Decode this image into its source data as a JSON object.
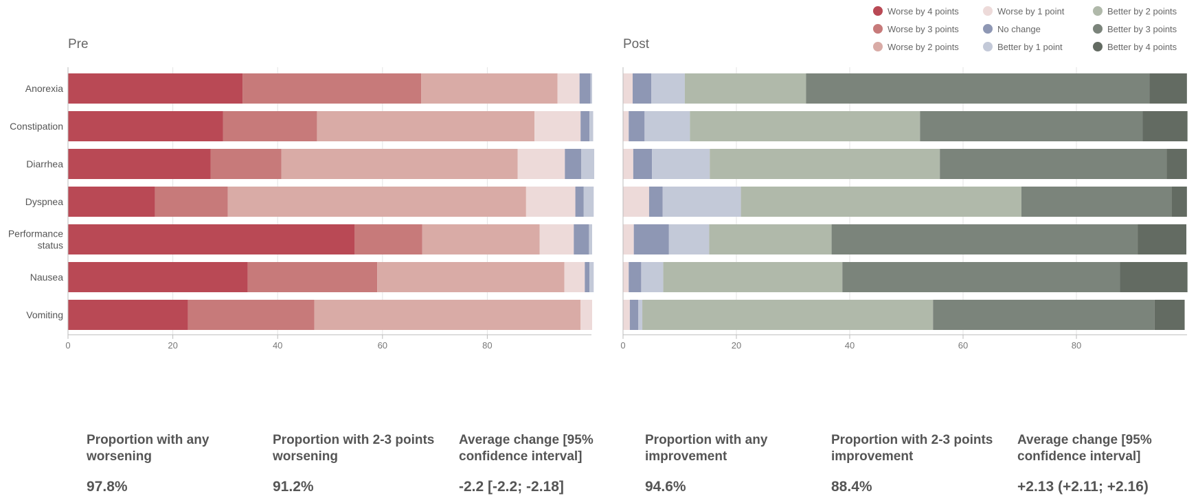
{
  "chart_data": [
    {
      "type": "bar",
      "orientation": "horizontal",
      "stacked": true,
      "title": "Pre",
      "categories": [
        "Anorexia",
        "Constipation",
        "Diarrhea",
        "Dyspnea",
        "Performance status",
        "Nausea",
        "Vomiting"
      ],
      "xlim": [
        0,
        100
      ],
      "xticks": [
        0,
        20,
        40,
        60,
        80
      ],
      "grid": true,
      "series": [
        {
          "name": "Worse by 4 points",
          "values": [
            33.3,
            29.6,
            27.2,
            16.6,
            54.7,
            34.3,
            22.9
          ]
        },
        {
          "name": "Worse by 3 points",
          "values": [
            34.1,
            17.9,
            13.5,
            13.9,
            12.9,
            24.7,
            24.1
          ]
        },
        {
          "name": "Worse by 2 points",
          "values": [
            26.0,
            41.5,
            45.1,
            56.9,
            22.4,
            35.7,
            50.8
          ]
        },
        {
          "name": "Worse by 1 point",
          "values": [
            4.2,
            8.8,
            9.0,
            9.4,
            6.5,
            3.9,
            2.2
          ]
        },
        {
          "name": "No change",
          "values": [
            2.1,
            1.7,
            3.1,
            1.6,
            2.9,
            0.9,
            0.0
          ]
        },
        {
          "name": "Better by 1 point",
          "values": [
            0.3,
            0.7,
            2.5,
            1.9,
            0.6,
            0.8,
            0.0
          ]
        }
      ]
    },
    {
      "type": "bar",
      "orientation": "horizontal",
      "stacked": true,
      "title": "Post",
      "categories": [
        "Anorexia",
        "Constipation",
        "Diarrhea",
        "Dyspnea",
        "Performance status",
        "Nausea",
        "Vomiting"
      ],
      "xlim": [
        0,
        100
      ],
      "xticks": [
        0,
        20,
        40,
        60,
        80
      ],
      "grid": true,
      "series": [
        {
          "name": "Worse by 1 point",
          "values": [
            1.7,
            1.0,
            1.8,
            4.6,
            1.9,
            1.0,
            1.2
          ]
        },
        {
          "name": "No change",
          "values": [
            3.3,
            2.8,
            3.3,
            2.4,
            6.2,
            2.2,
            1.5
          ]
        },
        {
          "name": "Better by 1 point",
          "values": [
            5.9,
            8.0,
            10.2,
            13.8,
            7.1,
            3.9,
            0.7
          ]
        },
        {
          "name": "Better by 2 points",
          "values": [
            21.4,
            40.6,
            40.6,
            49.5,
            21.6,
            31.6,
            51.3
          ]
        },
        {
          "name": "Better by 3 points",
          "values": [
            60.6,
            39.3,
            40.0,
            26.5,
            54.0,
            49.0,
            39.1
          ]
        },
        {
          "name": "Better by 4 points",
          "values": [
            6.6,
            7.9,
            3.6,
            2.7,
            8.6,
            11.9,
            5.3
          ]
        }
      ]
    }
  ],
  "legend": {
    "position": "top-right",
    "items": [
      {
        "label": "Worse by 4 points",
        "color": "#b94955"
      },
      {
        "label": "Worse by 3 points",
        "color": "#c77a7a"
      },
      {
        "label": "Worse by 2 points",
        "color": "#d9aba6"
      },
      {
        "label": "Worse by 1 point",
        "color": "#eddad9"
      },
      {
        "label": "No change",
        "color": "#8e97b4"
      },
      {
        "label": "Better by 1 point",
        "color": "#c3c9d8"
      },
      {
        "label": "Better by 2 points",
        "color": "#b0b9aa"
      },
      {
        "label": "Better by 3 points",
        "color": "#7b847b"
      },
      {
        "label": "Better by 4 points",
        "color": "#636b62"
      }
    ]
  },
  "category_labels": [
    [
      "Anorexia"
    ],
    [
      "Constipation"
    ],
    [
      "Diarrhea"
    ],
    [
      "Dyspnea"
    ],
    [
      "Performance",
      "status"
    ],
    [
      "Nausea"
    ],
    [
      "Vomiting"
    ]
  ],
  "stats": [
    {
      "label_lines": [
        "Proportion with any",
        "worsening"
      ],
      "value": "97.8%"
    },
    {
      "label_lines": [
        "Proportion with 2-3 points",
        "worsening"
      ],
      "value": "91.2%"
    },
    {
      "label_lines": [
        "Average change [95%",
        "confidence interval]"
      ],
      "value": "-2.2 [-2.2; -2.18]"
    },
    {
      "label_lines": [
        "Proportion with any",
        "improvement"
      ],
      "value": "94.6%"
    },
    {
      "label_lines": [
        "Proportion with 2-3 points",
        "improvement"
      ],
      "value": "88.4%"
    },
    {
      "label_lines": [
        "Average change [95%",
        "confidence interval]"
      ],
      "value": "+2.13 (+2.11; +2.16)"
    }
  ]
}
